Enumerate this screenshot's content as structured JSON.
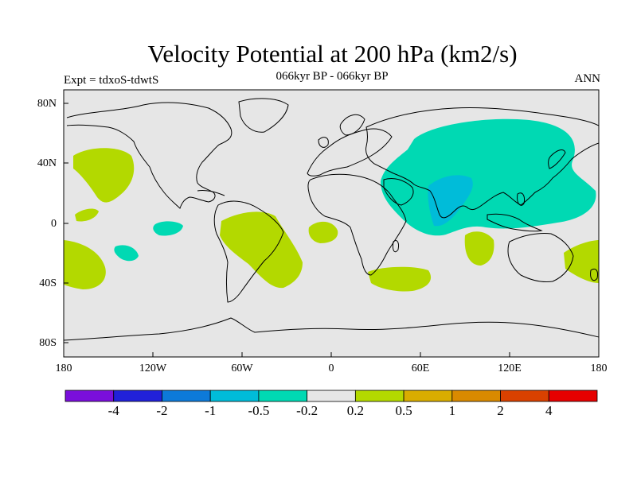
{
  "header": {
    "title": "Velocity Potential at 200 hPa (km2/s)",
    "subtitle": "066kyr BP - 066kyr BP",
    "left_label": "Expt = tdxoS-tdwtS",
    "right_label": "ANN"
  },
  "map": {
    "lat_labels": [
      "80N",
      "40N",
      "0",
      "40S",
      "80S"
    ],
    "lon_labels": [
      "180",
      "120W",
      "60W",
      "0",
      "60E",
      "120E",
      "180"
    ],
    "background_color": "#e6e6e6",
    "fields": [
      {
        "region": "Asia / Indian Ocean",
        "level": "-0.5 to -0.2",
        "color": "#00d9b3"
      },
      {
        "region": "Indian subcontinent core",
        "level": "-1 to -0.5",
        "color": "#00bcd9"
      },
      {
        "region": "Central/South America",
        "level": "0.2 to 0.5",
        "color": "#b3d900"
      },
      {
        "region": "South Atlantic / Indian Ocean",
        "level": "0.2 to 0.5",
        "color": "#b3d900"
      },
      {
        "region": "North Pacific",
        "level": "0.2 to 0.5",
        "color": "#b3d900"
      }
    ]
  },
  "colorbar": {
    "colors": [
      "#7a0fdb",
      "#2121d9",
      "#0d7ad9",
      "#00bcd9",
      "#00d9b3",
      "#e6e6e6",
      "#b3d900",
      "#d9ad00",
      "#d98a00",
      "#d94100",
      "#e60000"
    ],
    "labels": [
      "-4",
      "-2",
      "-1",
      "-0.5",
      "-0.2",
      "0.2",
      "0.5",
      "1",
      "2",
      "4"
    ]
  }
}
